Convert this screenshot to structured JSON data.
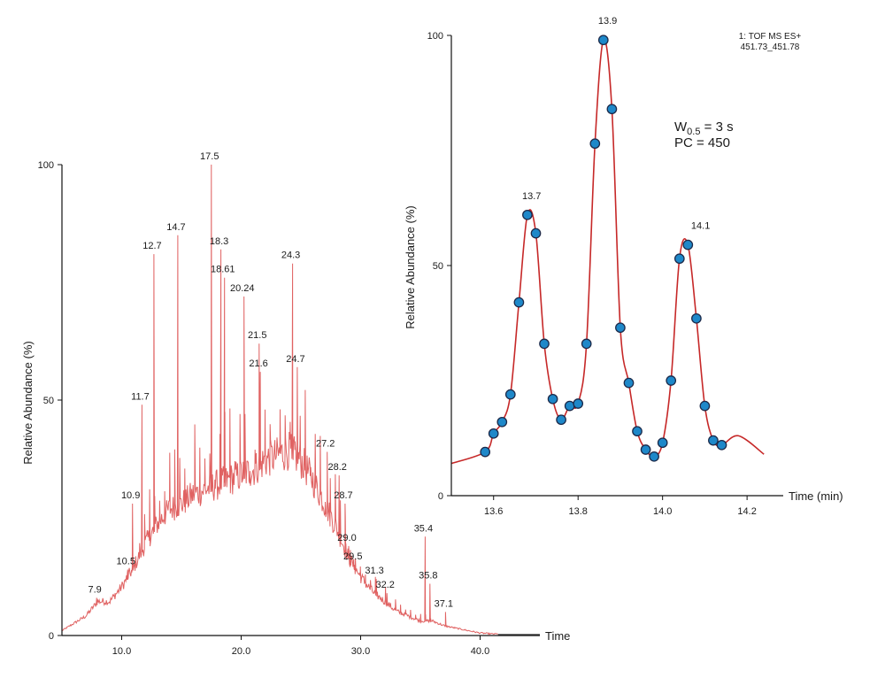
{
  "colors": {
    "left_trace": "#e06262",
    "right_trace": "#c62828",
    "marker_fill": "#1e88c9",
    "marker_stroke": "#1c2a4a",
    "axis": "#111111"
  },
  "chart_data": [
    {
      "type": "line",
      "xlabel": "Time",
      "ylabel": "Relative Abundance (%)",
      "xlim": [
        5,
        45
      ],
      "ylim": [
        0,
        100
      ],
      "x_ticks": [
        10,
        20,
        30,
        40
      ],
      "x_tick_labels": [
        "10.0",
        "20.0",
        "30.0",
        "40.0"
      ],
      "y_ticks": [
        0,
        50,
        100
      ],
      "y_tick_labels": [
        "0",
        "50",
        "100"
      ],
      "grid": false,
      "envelope": {
        "x": [
          5,
          7,
          8,
          9,
          10,
          11,
          12,
          13,
          14,
          15,
          16,
          17,
          18,
          19,
          20,
          21,
          22,
          23,
          24,
          25,
          26,
          27,
          28,
          29,
          30,
          31,
          32,
          33,
          34,
          35,
          36,
          37,
          38,
          39,
          40,
          41,
          45
        ],
        "y": [
          1,
          4,
          7,
          7,
          10,
          14,
          19,
          23,
          26,
          27,
          29,
          30,
          31,
          32,
          33,
          34,
          36,
          37,
          38,
          36,
          32,
          27,
          22,
          16,
          12,
          9,
          7,
          5,
          4,
          3,
          3,
          2,
          1.5,
          1,
          0.5,
          0.3,
          0.2
        ]
      },
      "peaks": [
        {
          "x": 7.9,
          "y": 8,
          "label": "7.9"
        },
        {
          "x": 10.5,
          "y": 14,
          "label": "10.5"
        },
        {
          "x": 10.9,
          "y": 28,
          "label": "10.9"
        },
        {
          "x": 11.7,
          "y": 49,
          "label": "11.7"
        },
        {
          "x": 12.7,
          "y": 81,
          "label": "12.7"
        },
        {
          "x": 14.7,
          "y": 85,
          "label": "14.7"
        },
        {
          "x": 17.5,
          "y": 100,
          "label": "17.5"
        },
        {
          "x": 18.3,
          "y": 82,
          "label": "18.3"
        },
        {
          "x": 18.61,
          "y": 76,
          "label": "18.61"
        },
        {
          "x": 20.24,
          "y": 72,
          "label": "20.24"
        },
        {
          "x": 21.5,
          "y": 62,
          "label": "21.5"
        },
        {
          "x": 21.6,
          "y": 56,
          "label": "21.6"
        },
        {
          "x": 24.3,
          "y": 79,
          "label": "24.3"
        },
        {
          "x": 24.7,
          "y": 57,
          "label": "24.7"
        },
        {
          "x": 27.2,
          "y": 39,
          "label": "27.2"
        },
        {
          "x": 28.2,
          "y": 34,
          "label": "28.2"
        },
        {
          "x": 28.7,
          "y": 28,
          "label": "28.7"
        },
        {
          "x": 29.0,
          "y": 19,
          "label": "29.0"
        },
        {
          "x": 29.5,
          "y": 15,
          "label": "29.5"
        },
        {
          "x": 31.3,
          "y": 12,
          "label": "31.3"
        },
        {
          "x": 32.2,
          "y": 9,
          "label": "32.2"
        },
        {
          "x": 35.4,
          "y": 21,
          "label": "35.4"
        },
        {
          "x": 35.8,
          "y": 11,
          "label": "35.8"
        },
        {
          "x": 37.1,
          "y": 5,
          "label": "37.1"
        }
      ]
    },
    {
      "type": "line",
      "xlabel": "Time (min)",
      "ylabel": "Relative Abundance (%)",
      "xlim": [
        13.5,
        14.25
      ],
      "ylim": [
        0,
        100
      ],
      "x_ticks": [
        13.6,
        13.8,
        14.0,
        14.2
      ],
      "x_tick_labels": [
        "13.6",
        "13.8",
        "14.0",
        "14.2"
      ],
      "y_ticks": [
        0,
        50,
        100
      ],
      "y_tick_labels": [
        "0",
        "50",
        "100"
      ],
      "grid": false,
      "annotation_lines": [
        "1: TOF MS ES+",
        "451.73_451.78"
      ],
      "metrics": {
        "width_prefix": "W",
        "width_subscript": "0.5",
        "width_value": " = 3 s",
        "pc": "PC = 450"
      },
      "series": [
        {
          "x": [
            13.5,
            13.58,
            13.6,
            13.62,
            13.64,
            13.66,
            13.68,
            13.7,
            13.72,
            13.74,
            13.76,
            13.78,
            13.8,
            13.82,
            13.84,
            13.86,
            13.88,
            13.9,
            13.92,
            13.94,
            13.96,
            13.98,
            14.0,
            14.02,
            14.04,
            14.06,
            14.08,
            14.1,
            14.12,
            14.14,
            14.18,
            14.24
          ],
          "y": [
            7,
            9.5,
            13.5,
            16,
            22,
            42,
            61,
            57,
            33,
            21,
            16.5,
            19.5,
            20,
            33,
            76.5,
            99,
            84,
            36.5,
            24.5,
            14,
            10,
            8.5,
            11.5,
            25,
            51.5,
            54.5,
            38.5,
            19.5,
            12,
            11,
            13,
            9
          ],
          "markers_from": 13.58,
          "markers_to": 14.14
        }
      ],
      "peak_labels": [
        {
          "x": 13.69,
          "y": 61,
          "label": "13.7"
        },
        {
          "x": 13.87,
          "y": 99,
          "label": "13.9"
        },
        {
          "x": 14.09,
          "y": 54.5,
          "label": "14.1"
        }
      ]
    }
  ]
}
